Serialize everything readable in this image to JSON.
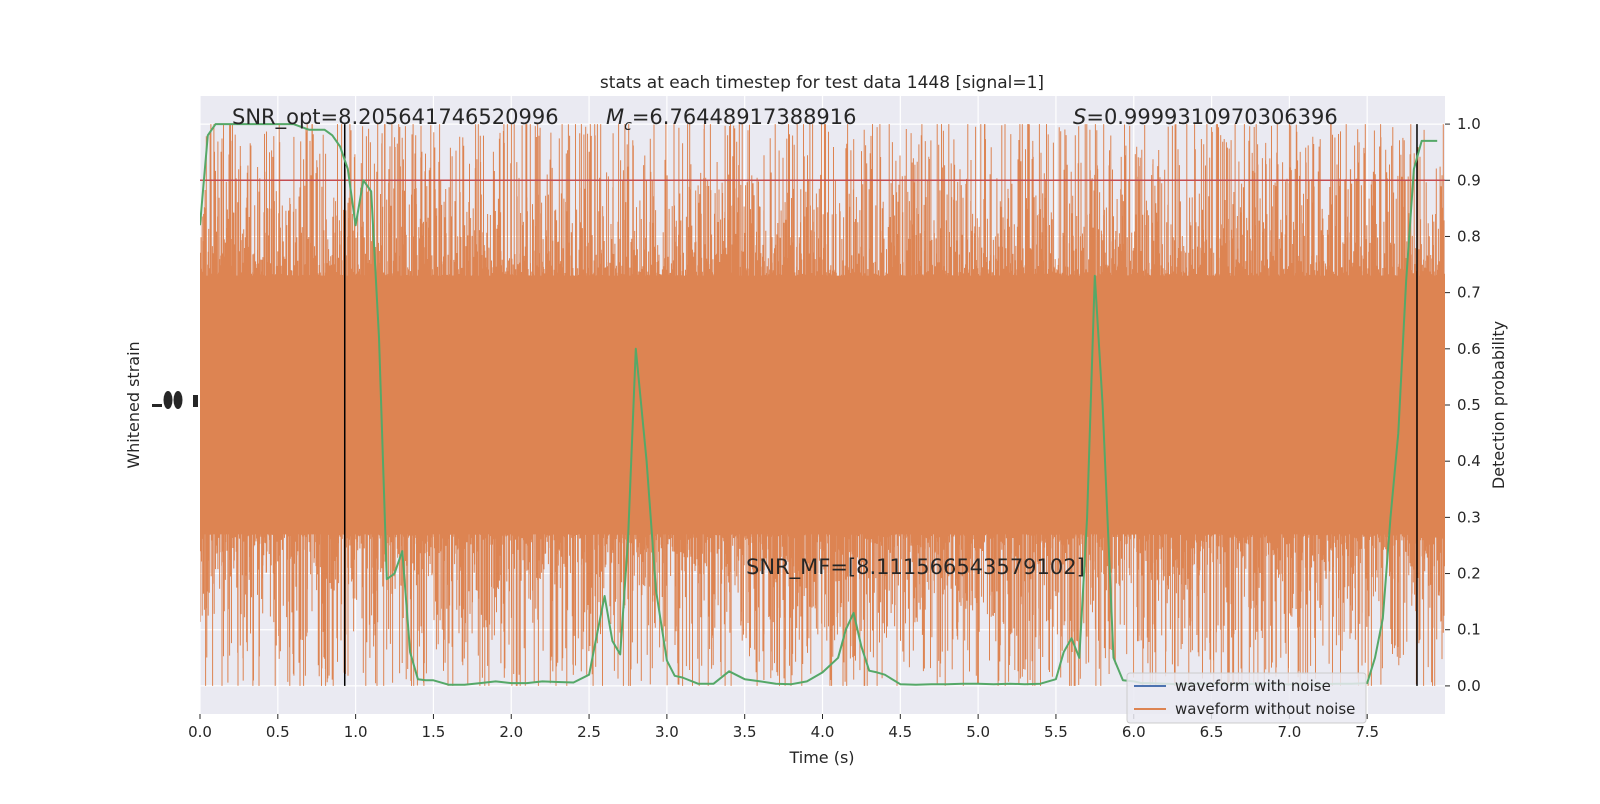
{
  "chart_data": {
    "type": "line",
    "title": "stats at each timestep for test data 1448 [signal=1]",
    "xlabel": "Time (s)",
    "ylabel_left": "Whitened strain",
    "ylabel_right": "Detection probability",
    "xlim": [
      0,
      8
    ],
    "x_ticks": [
      "0.0",
      "0.5",
      "1.0",
      "1.5",
      "2.0",
      "2.5",
      "3.0",
      "3.5",
      "4.0",
      "4.5",
      "5.0",
      "5.5",
      "6.0",
      "6.5",
      "7.0",
      "7.5"
    ],
    "ylim_right": [
      -0.05,
      1.05
    ],
    "y_right_ticks": [
      "0.0",
      "0.1",
      "0.2",
      "0.3",
      "0.4",
      "0.5",
      "0.6",
      "0.7",
      "0.8",
      "0.9",
      "1.0"
    ],
    "grid": true,
    "background": "#eaeaf2",
    "annotations": {
      "snr_opt": "SNR_opt=8.205641746520996",
      "mc_symbol": "M",
      "mc_sub": "c",
      "mc_value": "=6.76448917388916",
      "s_symbol": "S",
      "s_value": "=0.9999310970306396",
      "snr_mf": "SNR_MF=[8.111566543579102]"
    },
    "threshold": {
      "value": 0.9,
      "color": "#c44e52"
    },
    "vertical_lines": [
      0.93,
      7.82
    ],
    "legend": {
      "placement": "lower-right",
      "entries": [
        {
          "label": "waveform with noise",
          "color": "#4c72b0"
        },
        {
          "label": "waveform without noise",
          "color": "#dd8452"
        }
      ]
    },
    "strain_series": {
      "name": "waveform without noise",
      "color": "#dd8452",
      "band": [
        0.27,
        0.73
      ],
      "spike_min": 0.0,
      "spike_max": 1.0
    },
    "probability_series": {
      "color": "#55a868",
      "x": [
        0.0,
        0.05,
        0.1,
        0.2,
        0.3,
        0.4,
        0.5,
        0.6,
        0.7,
        0.8,
        0.85,
        0.9,
        0.95,
        1.0,
        1.05,
        1.1,
        1.15,
        1.2,
        1.25,
        1.3,
        1.35,
        1.4,
        1.45,
        1.5,
        1.6,
        1.7,
        1.8,
        1.9,
        2.0,
        2.1,
        2.2,
        2.3,
        2.4,
        2.5,
        2.55,
        2.6,
        2.65,
        2.7,
        2.75,
        2.8,
        2.87,
        2.93,
        3.0,
        3.05,
        3.1,
        3.2,
        3.3,
        3.4,
        3.5,
        3.6,
        3.7,
        3.8,
        3.9,
        4.0,
        4.1,
        4.15,
        4.2,
        4.25,
        4.3,
        4.35,
        4.4,
        4.5,
        4.6,
        4.7,
        4.8,
        4.9,
        5.0,
        5.1,
        5.2,
        5.3,
        5.4,
        5.5,
        5.55,
        5.6,
        5.65,
        5.7,
        5.75,
        5.8,
        5.87,
        5.93,
        6.0,
        6.05,
        6.1,
        6.2,
        6.3,
        6.4,
        6.5,
        6.6,
        6.7,
        6.8,
        6.9,
        7.0,
        7.1,
        7.2,
        7.3,
        7.4,
        7.5,
        7.55,
        7.6,
        7.65,
        7.7,
        7.75,
        7.8,
        7.85,
        7.9,
        7.95
      ],
      "y": [
        0.82,
        0.98,
        1.0,
        1.0,
        1.0,
        1.0,
        1.0,
        1.0,
        0.99,
        0.99,
        0.98,
        0.96,
        0.92,
        0.82,
        0.9,
        0.88,
        0.62,
        0.19,
        0.2,
        0.24,
        0.06,
        0.012,
        0.01,
        0.01,
        0.002,
        0.002,
        0.005,
        0.008,
        0.005,
        0.005,
        0.008,
        0.007,
        0.006,
        0.02,
        0.09,
        0.16,
        0.08,
        0.056,
        0.26,
        0.6,
        0.4,
        0.17,
        0.045,
        0.018,
        0.015,
        0.004,
        0.004,
        0.026,
        0.012,
        0.008,
        0.004,
        0.003,
        0.008,
        0.024,
        0.05,
        0.1,
        0.13,
        0.07,
        0.027,
        0.024,
        0.02,
        0.003,
        0.002,
        0.003,
        0.003,
        0.004,
        0.004,
        0.003,
        0.004,
        0.003,
        0.004,
        0.012,
        0.06,
        0.085,
        0.05,
        0.3,
        0.73,
        0.5,
        0.05,
        0.01,
        0.008,
        0.005,
        0.005,
        0.004,
        0.003,
        0.004,
        0.004,
        0.003,
        0.003,
        0.004,
        0.004,
        0.003,
        0.004,
        0.003,
        0.004,
        0.004,
        0.005,
        0.05,
        0.12,
        0.3,
        0.45,
        0.72,
        0.92,
        0.97,
        0.97,
        0.97
      ]
    }
  }
}
